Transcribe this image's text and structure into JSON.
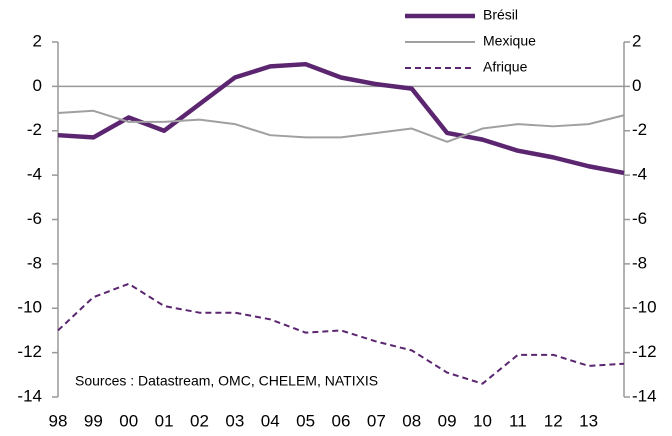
{
  "chart_data": {
    "type": "line",
    "categories": [
      "98",
      "99",
      "00",
      "01",
      "02",
      "03",
      "04",
      "05",
      "06",
      "07",
      "08",
      "09",
      "10",
      "11",
      "12",
      "13",
      null
    ],
    "series": [
      {
        "name": "Brésil",
        "color": "#5b2570",
        "line_style": "solid",
        "values": [
          -2.2,
          -2.3,
          -1.4,
          -2.0,
          -0.8,
          0.4,
          0.9,
          1.0,
          0.4,
          0.1,
          -0.1,
          -2.1,
          -2.4,
          -2.9,
          -3.2,
          -3.6,
          -3.9
        ]
      },
      {
        "name": "Mexique",
        "color": "#a0a0a0",
        "line_style": "solid",
        "values": [
          -1.2,
          -1.1,
          -1.6,
          -1.6,
          -1.5,
          -1.7,
          -2.2,
          -2.3,
          -2.3,
          -2.1,
          -1.9,
          -2.5,
          -1.9,
          -1.7,
          -1.8,
          -1.7,
          -1.3
        ]
      },
      {
        "name": "Afrique",
        "color": "#5b2570",
        "line_style": "dashed",
        "values": [
          -11.0,
          -9.5,
          -8.9,
          -9.9,
          -10.2,
          -10.2,
          -10.5,
          -11.1,
          -11.0,
          -11.5,
          -11.9,
          -12.9,
          -13.4,
          -12.1,
          -12.1,
          -12.6,
          -12.5
        ]
      }
    ],
    "ylim": [
      -14,
      2
    ],
    "yticks": [
      -14,
      -12,
      -10,
      -8,
      -6,
      -4,
      -2,
      0,
      2
    ],
    "y2lim": [
      -14,
      2
    ],
    "y2ticks": [
      -14,
      -12,
      -10,
      -8,
      -6,
      -4,
      -2,
      0,
      2
    ],
    "legend": "top-right",
    "annotation": "Sources : Datastream, OMC, CHELEM, NATIXIS"
  }
}
